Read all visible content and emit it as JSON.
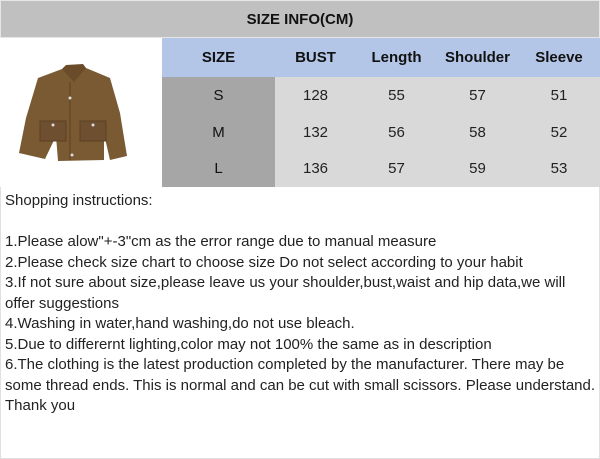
{
  "title": "SIZE INFO(CM)",
  "image": {
    "icon": "brown-suede-jacket",
    "color": "#7a5a33"
  },
  "table": {
    "headers": [
      "SIZE",
      "BUST",
      "Length",
      "Shoulder",
      "Sleeve"
    ],
    "rows": [
      [
        "S",
        "128",
        "55",
        "57",
        "51"
      ],
      [
        "M",
        "132",
        "56",
        "58",
        "52"
      ],
      [
        "L",
        "136",
        "57",
        "59",
        "53"
      ]
    ]
  },
  "instructions": {
    "heading": "Shopping instructions:",
    "lines": [
      "1.Please alow\"+-3\"cm as the error range due to manual measure",
      "2.Please check size chart to choose size Do not select according to your habit",
      "3.If not sure about size,please leave us your shoulder,bust,waist and hip data,we will offer suggestions",
      "4.Washing in water,hand washing,do not use bleach.",
      "5.Due to differernt lighting,color may not 100% the same as in description",
      "6.The clothing is the latest production completed by the manufacturer. There may be some thread ends. This is normal and can be cut with small scissors. Please understand. Thank you"
    ]
  }
}
